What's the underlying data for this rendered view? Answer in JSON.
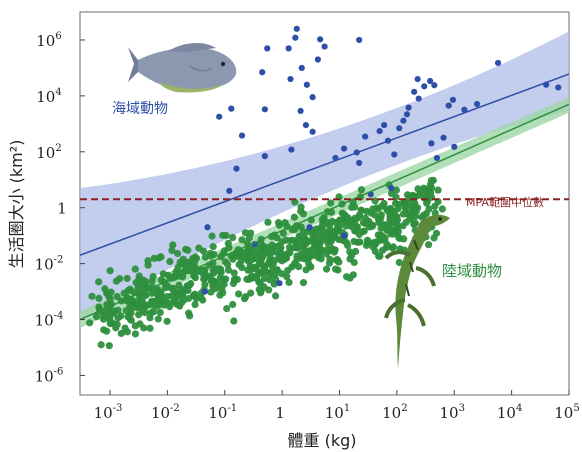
{
  "chart_data": {
    "type": "scatter",
    "xlabel": "體重 (kg)",
    "ylabel": "生活圈大小 (km²)",
    "x_scale": "log",
    "y_scale": "log",
    "xlim": [
      0.0003,
      100000
    ],
    "ylim": [
      2e-07,
      10000000
    ],
    "x_ticks": [
      {
        "base": "10",
        "exp": "-3",
        "value": 0.001
      },
      {
        "base": "10",
        "exp": "-2",
        "value": 0.01
      },
      {
        "base": "10",
        "exp": "-1",
        "value": 0.1
      },
      {
        "base": "1",
        "exp": "",
        "value": 1
      },
      {
        "base": "10",
        "exp": "1",
        "value": 10
      },
      {
        "base": "10",
        "exp": "2",
        "value": 100
      },
      {
        "base": "10",
        "exp": "3",
        "value": 1000
      },
      {
        "base": "10",
        "exp": "4",
        "value": 10000
      },
      {
        "base": "10",
        "exp": "5",
        "value": 100000
      }
    ],
    "y_ticks": [
      {
        "base": "10",
        "exp": "-6",
        "value": 1e-06
      },
      {
        "base": "10",
        "exp": "-4",
        "value": 0.0001
      },
      {
        "base": "10",
        "exp": "-2",
        "value": 0.01
      },
      {
        "base": "1",
        "exp": "",
        "value": 1
      },
      {
        "base": "10",
        "exp": "2",
        "value": 100
      },
      {
        "base": "10",
        "exp": "4",
        "value": 10000
      },
      {
        "base": "10",
        "exp": "6",
        "value": 1000000
      }
    ],
    "grid": false,
    "reference_line": {
      "label": "MPA範圍中位數",
      "y": 2,
      "color": "#8b2222"
    },
    "series": [
      {
        "name": "海域動物",
        "color": "#2e4fa8",
        "band_color": "#aab8e6",
        "fit_line": {
          "x": [
            0.0003,
            100000
          ],
          "y": [
            0.02,
            60000
          ]
        },
        "ci_lower": [
          0.0001,
          3000
        ],
        "ci_upper": [
          5,
          2000000
        ],
        "points": [
          [
            1.8,
            2500000
          ],
          [
            1.7,
            1200000
          ],
          [
            0.55,
            500000
          ],
          [
            4.6,
            1050000
          ],
          [
            5.5,
            580000
          ],
          [
            22,
            1000000
          ],
          [
            1.3,
            500000
          ],
          [
            4.2,
            200000
          ],
          [
            2.2,
            100000
          ],
          [
            0.45,
            70000
          ],
          [
            1.4,
            40000
          ],
          [
            2.7,
            25000
          ],
          [
            3.4,
            9000
          ],
          [
            0.08,
            1800
          ],
          [
            0.13,
            3500
          ],
          [
            0.5,
            3300
          ],
          [
            2.1,
            2900
          ],
          [
            2.6,
            900
          ],
          [
            3.4,
            520
          ],
          [
            1.45,
            120
          ],
          [
            0.12,
            4
          ],
          [
            0.16,
            25
          ],
          [
            0.2,
            380
          ],
          [
            0.5,
            70
          ],
          [
            8.5,
            60
          ],
          [
            12,
            130
          ],
          [
            20,
            95
          ],
          [
            22,
            40
          ],
          [
            28,
            350
          ],
          [
            50,
            550
          ],
          [
            60,
            900
          ],
          [
            70,
            250
          ],
          [
            90,
            80
          ],
          [
            110,
            700
          ],
          [
            130,
            1300
          ],
          [
            150,
            2200
          ],
          [
            160,
            3800
          ],
          [
            200,
            14000
          ],
          [
            240,
            8000
          ],
          [
            300,
            22000
          ],
          [
            380,
            34000
          ],
          [
            450,
            24000
          ],
          [
            230,
            40000
          ],
          [
            650,
            320
          ],
          [
            800,
            4500
          ],
          [
            950,
            7200
          ],
          [
            1500,
            3200
          ],
          [
            2500,
            5100
          ],
          [
            5800,
            150000
          ],
          [
            40000,
            25000
          ],
          [
            65000,
            20000
          ],
          [
            1000,
            150
          ],
          [
            500,
            60
          ],
          [
            400,
            200
          ],
          [
            0.33,
            0.05
          ],
          [
            0.9,
            0.002
          ],
          [
            0.045,
            0.001
          ],
          [
            12,
            0.1
          ],
          [
            3,
            0.2
          ],
          [
            0.05,
            0.2
          ],
          [
            250,
            0.15
          ],
          [
            80,
            5
          ],
          [
            35,
            3
          ]
        ]
      },
      {
        "name": "陸域動物",
        "color": "#2e8f3e",
        "band_color": "#9ed7a5",
        "fit_line": {
          "x": [
            0.0003,
            100000
          ],
          "y": [
            0.0001,
            5000
          ]
        },
        "ci_lower": [
          5e-05,
          2500
        ],
        "ci_upper": [
          0.0002,
          9000
        ]
      }
    ],
    "annotations": [
      {
        "text": "海域動物",
        "color": "#2e4fa8"
      },
      {
        "text": "陸域動物",
        "color": "#2e8f3e"
      },
      {
        "text": "MPA範圍中位數",
        "color": "#8b2222"
      }
    ]
  }
}
